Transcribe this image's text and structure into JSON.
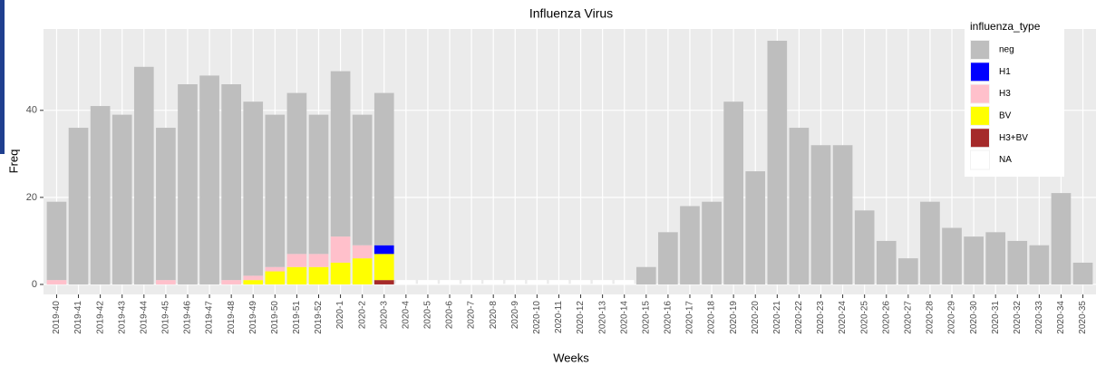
{
  "chart_data": {
    "type": "bar",
    "stacked": true,
    "title": "Influenza Virus",
    "x_label": "Weeks",
    "y_label": "Freq",
    "legend_title": "influenza_type",
    "categories": [
      "2019-40",
      "2019-41",
      "2019-42",
      "2019-43",
      "2019-44",
      "2019-45",
      "2019-46",
      "2019-47",
      "2019-48",
      "2019-49",
      "2019-50",
      "2019-51",
      "2019-52",
      "2020-1",
      "2020-2",
      "2020-3",
      "2020-4",
      "2020-5",
      "2020-6",
      "2020-7",
      "2020-8",
      "2020-9",
      "2020-10",
      "2020-11",
      "2020-12",
      "2020-13",
      "2020-14",
      "2020-15",
      "2020-16",
      "2020-17",
      "2020-18",
      "2020-19",
      "2020-20",
      "2020-21",
      "2020-22",
      "2020-23",
      "2020-24",
      "2020-25",
      "2020-26",
      "2020-27",
      "2020-28",
      "2020-29",
      "2020-30",
      "2020-31",
      "2020-32",
      "2020-33",
      "2020-34",
      "2020-35"
    ],
    "series": [
      {
        "name": "neg",
        "color": "#bebebe",
        "values": [
          18,
          36,
          41,
          39,
          50,
          35,
          46,
          48,
          45,
          40,
          35,
          37,
          32,
          38,
          30,
          35,
          0,
          0,
          0,
          0,
          0,
          0,
          0,
          0,
          0,
          0,
          0,
          4,
          12,
          18,
          19,
          42,
          26,
          56,
          36,
          32,
          32,
          17,
          10,
          6,
          19,
          13,
          11,
          12,
          10,
          9,
          21,
          5
        ]
      },
      {
        "name": "H1",
        "color": "#0000ff",
        "values": [
          0,
          0,
          0,
          0,
          0,
          0,
          0,
          0,
          0,
          0,
          0,
          0,
          0,
          0,
          0,
          2,
          0,
          0,
          0,
          0,
          0,
          0,
          0,
          0,
          0,
          0,
          0,
          0,
          0,
          0,
          0,
          0,
          0,
          0,
          0,
          0,
          0,
          0,
          0,
          0,
          0,
          0,
          0,
          0,
          0,
          0,
          0,
          0
        ]
      },
      {
        "name": "H3",
        "color": "#ffc0cb",
        "values": [
          1,
          0,
          0,
          0,
          0,
          1,
          0,
          0,
          1,
          1,
          1,
          3,
          3,
          6,
          3,
          0,
          0,
          0,
          0,
          0,
          0,
          0,
          0,
          0,
          0,
          0,
          0,
          0,
          0,
          0,
          0,
          0,
          0,
          0,
          0,
          0,
          0,
          0,
          0,
          0,
          0,
          0,
          0,
          0,
          0,
          0,
          0,
          0
        ]
      },
      {
        "name": "BV",
        "color": "#ffff00",
        "values": [
          0,
          0,
          0,
          0,
          0,
          0,
          0,
          0,
          0,
          1,
          3,
          4,
          4,
          5,
          6,
          6,
          0,
          0,
          0,
          0,
          0,
          0,
          0,
          0,
          0,
          0,
          0,
          0,
          0,
          0,
          0,
          0,
          0,
          0,
          0,
          0,
          0,
          0,
          0,
          0,
          0,
          0,
          0,
          0,
          0,
          0,
          0,
          0
        ]
      },
      {
        "name": "H3+BV",
        "color": "#a52a2a",
        "values": [
          0,
          0,
          0,
          0,
          0,
          0,
          0,
          0,
          0,
          0,
          0,
          0,
          0,
          0,
          0,
          1,
          0,
          0,
          0,
          0,
          0,
          0,
          0,
          0,
          0,
          0,
          0,
          0,
          0,
          0,
          0,
          0,
          0,
          0,
          0,
          0,
          0,
          0,
          0,
          0,
          0,
          0,
          0,
          0,
          0,
          0,
          0,
          0
        ]
      },
      {
        "name": "NA",
        "color": "#ffffff",
        "values": [
          0,
          0,
          0,
          0,
          0,
          0,
          0,
          0,
          0,
          0,
          0,
          0,
          0,
          0,
          0,
          0,
          1,
          1,
          1,
          1,
          1,
          1,
          1,
          1,
          1,
          1,
          1,
          0,
          0,
          0,
          0,
          0,
          0,
          0,
          0,
          0,
          0,
          0,
          0,
          0,
          0,
          0,
          0,
          0,
          0,
          0,
          0,
          0
        ]
      }
    ],
    "ylim": [
      -2.3,
      58.7
    ],
    "yticks": [
      0,
      20,
      40
    ],
    "grid": true
  }
}
